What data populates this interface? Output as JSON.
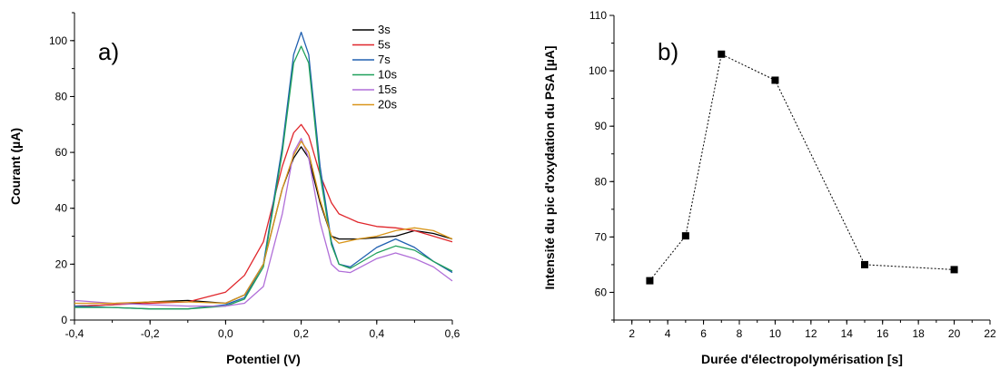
{
  "chart_data": [
    {
      "type": "line",
      "panel_label": "a)",
      "xlabel": "Potentiel (V)",
      "ylabel": "Courant (µA)",
      "xlim": [
        -0.4,
        0.6
      ],
      "ylim": [
        0,
        110
      ],
      "xticks": [
        -0.4,
        -0.2,
        0.0,
        0.2,
        0.4,
        0.6
      ],
      "xtick_labels": [
        "-0,4",
        "-0,2",
        "0,0",
        "0,2",
        "0,4",
        "0,6"
      ],
      "yticks": [
        0,
        20,
        40,
        60,
        80,
        100
      ],
      "ytick_labels": [
        "0",
        "20",
        "40",
        "60",
        "80",
        "100"
      ],
      "legend_position": "top-right",
      "grid": false,
      "series": [
        {
          "name": "3s",
          "color": "#000000",
          "x": [
            -0.4,
            -0.3,
            -0.2,
            -0.1,
            0.0,
            0.05,
            0.1,
            0.15,
            0.18,
            0.2,
            0.22,
            0.25,
            0.28,
            0.3,
            0.35,
            0.4,
            0.45,
            0.5,
            0.55,
            0.6
          ],
          "y": [
            5,
            5.5,
            6.5,
            7,
            6,
            9,
            20,
            47,
            58,
            62,
            58,
            42,
            30,
            29,
            29,
            29.5,
            30,
            32,
            31,
            29
          ]
        },
        {
          "name": "5s",
          "color": "#e0262b",
          "x": [
            -0.4,
            -0.3,
            -0.2,
            -0.1,
            0.0,
            0.05,
            0.1,
            0.15,
            0.18,
            0.2,
            0.22,
            0.25,
            0.28,
            0.3,
            0.35,
            0.4,
            0.45,
            0.5,
            0.55,
            0.6
          ],
          "y": [
            5,
            5.5,
            6,
            6.5,
            10,
            16,
            28,
            55,
            67,
            70,
            66,
            52,
            42,
            38,
            35,
            33.5,
            33,
            32,
            30,
            28
          ]
        },
        {
          "name": "7s",
          "color": "#2060b0",
          "x": [
            -0.4,
            -0.3,
            -0.2,
            -0.1,
            0.0,
            0.05,
            0.1,
            0.15,
            0.18,
            0.2,
            0.22,
            0.25,
            0.28,
            0.3,
            0.33,
            0.4,
            0.45,
            0.5,
            0.55,
            0.6
          ],
          "y": [
            5,
            4.5,
            4,
            4,
            5.5,
            8,
            20,
            62,
            95,
            103,
            95,
            55,
            28,
            20,
            19,
            26,
            29,
            26,
            21,
            17
          ]
        },
        {
          "name": "10s",
          "color": "#1fa05a",
          "x": [
            -0.4,
            -0.3,
            -0.2,
            -0.1,
            0.0,
            0.05,
            0.1,
            0.15,
            0.18,
            0.2,
            0.22,
            0.25,
            0.28,
            0.3,
            0.33,
            0.4,
            0.45,
            0.5,
            0.55,
            0.6
          ],
          "y": [
            4.5,
            4.5,
            4,
            4,
            5,
            7.5,
            19,
            60,
            92,
            98,
            92,
            52,
            27,
            20,
            18.5,
            24,
            26.5,
            25,
            21,
            17.5
          ]
        },
        {
          "name": "15s",
          "color": "#b06ed8",
          "x": [
            -0.4,
            -0.3,
            -0.2,
            -0.1,
            0.0,
            0.05,
            0.1,
            0.15,
            0.18,
            0.2,
            0.22,
            0.25,
            0.28,
            0.3,
            0.33,
            0.4,
            0.45,
            0.5,
            0.55,
            0.6
          ],
          "y": [
            7,
            6,
            5.5,
            5,
            5,
            6,
            12,
            38,
            60,
            65,
            58,
            35,
            20,
            17.5,
            17,
            22,
            24,
            22,
            19,
            14
          ]
        },
        {
          "name": "20s",
          "color": "#d9961a",
          "x": [
            -0.4,
            -0.3,
            -0.2,
            -0.1,
            0.0,
            0.05,
            0.1,
            0.15,
            0.18,
            0.2,
            0.22,
            0.25,
            0.28,
            0.3,
            0.35,
            0.4,
            0.45,
            0.5,
            0.55,
            0.6
          ],
          "y": [
            6,
            6,
            6.5,
            6.5,
            6,
            9,
            20,
            47,
            59,
            64,
            60,
            43,
            30,
            27.5,
            29,
            30,
            32,
            33,
            32,
            29
          ]
        }
      ]
    },
    {
      "type": "scatter",
      "panel_label": "b)",
      "xlabel": "Durée d'électropolymérisation [s]",
      "ylabel": "Intensité du pic d'oxydation du PSA [µA]",
      "xlim": [
        1,
        22
      ],
      "ylim": [
        55,
        110
      ],
      "xticks": [
        2,
        4,
        6,
        8,
        10,
        12,
        14,
        16,
        18,
        20,
        22
      ],
      "xtick_labels": [
        "2",
        "4",
        "6",
        "8",
        "10",
        "12",
        "14",
        "16",
        "18",
        "20",
        "22"
      ],
      "yticks": [
        60,
        70,
        80,
        90,
        100,
        110
      ],
      "ytick_labels": [
        "60",
        "70",
        "80",
        "90",
        "100",
        "110"
      ],
      "grid": false,
      "line_style": "dotted",
      "color": "#000000",
      "x": [
        3,
        5,
        7,
        10,
        15,
        20
      ],
      "y": [
        62.1,
        70.2,
        103.0,
        98.3,
        65.0,
        64.1
      ]
    }
  ]
}
